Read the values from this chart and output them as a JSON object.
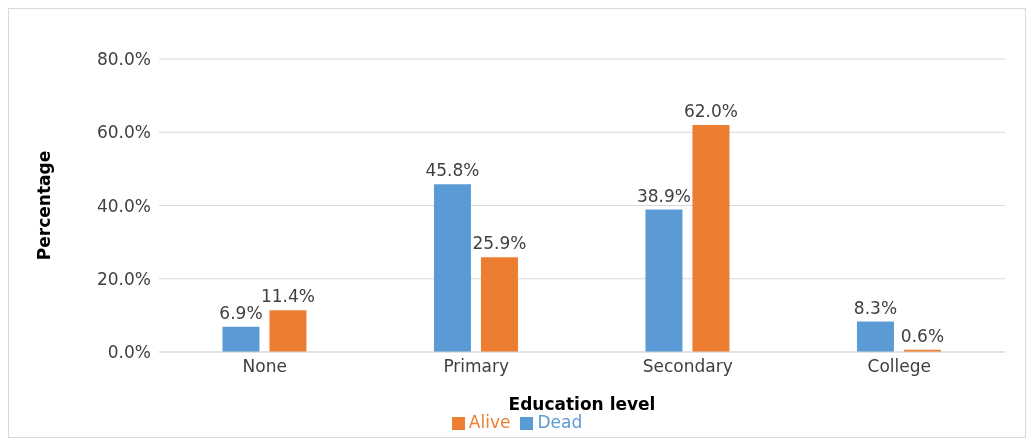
{
  "chart_data": {
    "type": "bar",
    "xlabel": "Education level",
    "ylabel": "Percentage",
    "categories": [
      "None",
      "Primary",
      "Secondary",
      "College"
    ],
    "series": [
      {
        "name": "Dead",
        "color": "#5b9bd5",
        "values": [
          6.9,
          45.8,
          38.9,
          8.3
        ],
        "value_labels": [
          "6.9%",
          "45.8%",
          "38.9%",
          "8.3%"
        ]
      },
      {
        "name": "Alive",
        "color": "#ed7d31",
        "values": [
          11.4,
          25.9,
          62.0,
          0.6
        ],
        "value_labels": [
          "11.4%",
          "25.9%",
          "62.0%",
          "0.6%"
        ]
      }
    ],
    "ylim": [
      0,
      80
    ],
    "yticks": [
      {
        "value": 0,
        "label": "0.0%"
      },
      {
        "value": 20,
        "label": "20.0%"
      },
      {
        "value": 40,
        "label": "40.0%"
      },
      {
        "value": 60,
        "label": "60.0%"
      },
      {
        "value": 80,
        "label": "80.0%"
      }
    ],
    "grid": "y",
    "legend": "bottom"
  }
}
